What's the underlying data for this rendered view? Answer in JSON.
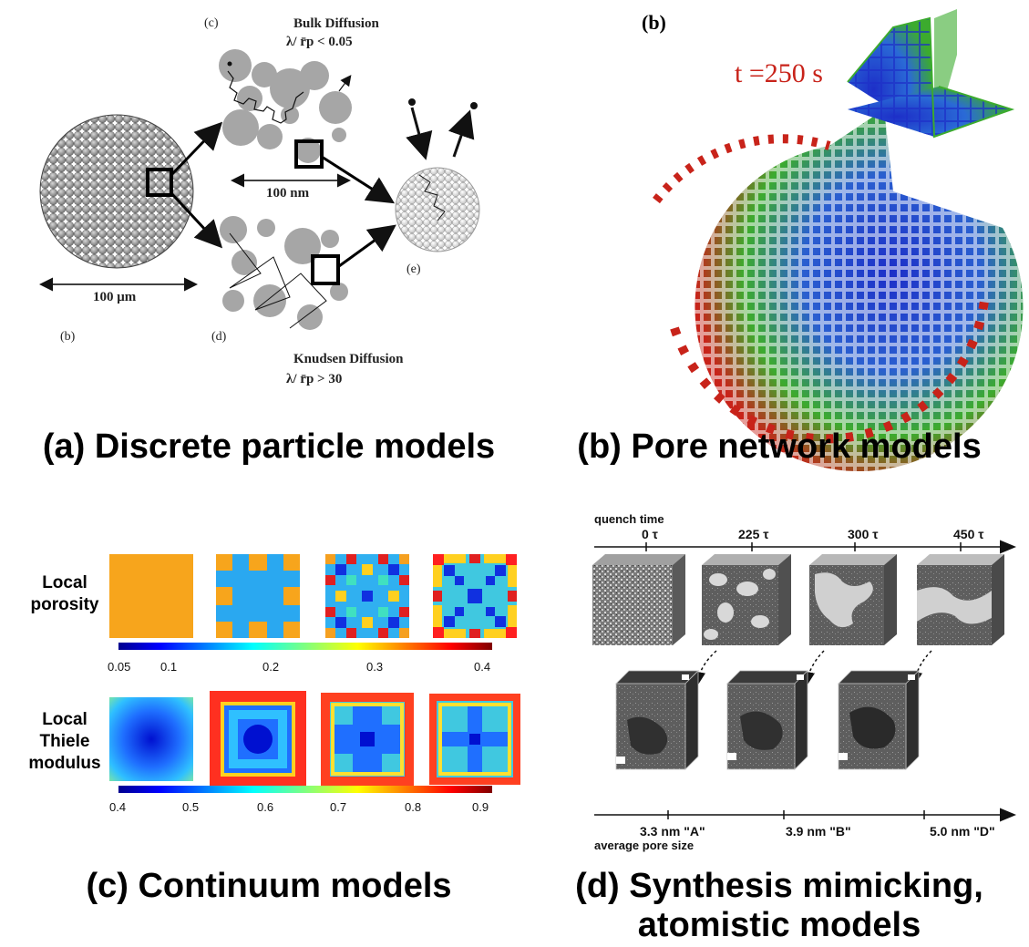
{
  "panel_a": {
    "caption": "(a) Discrete particle models",
    "label_c": "(c)",
    "label_b": "(b)",
    "label_d": "(d)",
    "label_e": "(e)",
    "bulk_title": "Bulk Diffusion",
    "bulk_cond": "λ/ r̄p < 0.05",
    "knudsen_title": "Knudsen Diffusion",
    "knudsen_cond": "λ/ r̄p > 30",
    "scale_nm": "100 nm",
    "scale_um": "100 μm"
  },
  "panel_b": {
    "caption": "(b) Pore network models",
    "label": "(b)",
    "time": "t =250 s"
  },
  "panel_c": {
    "caption": "(c) Continuum models",
    "row1_label_line1": "Local",
    "row1_label_line2": "porosity",
    "row2_label_line1": "Local",
    "row2_label_line2": "Thiele",
    "row2_label_line3": "modulus",
    "colorbar1_ticks": [
      "0.05",
      "0.1",
      "0.2",
      "0.3",
      "0.4"
    ],
    "colorbar2_ticks": [
      "0.4",
      "0.5",
      "0.6",
      "0.7",
      "0.8",
      "0.9"
    ]
  },
  "panel_d": {
    "caption_line1": "(d) Synthesis mimicking,",
    "caption_line2": "atomistic models",
    "quench_label": "quench time",
    "times": [
      "0 τ",
      "225 τ",
      "300 τ",
      "450 τ"
    ],
    "pore_sizes": [
      "3.3 nm \"A\"",
      "3.9 nm \"B\"",
      "5.0 nm \"D\""
    ],
    "pore_label": "average pore size"
  },
  "colors": {
    "porosity_orange": "#f7a51c",
    "porosity_blue": "#2aa8f0",
    "network_red": "#c8231a",
    "network_green": "#3cab2e",
    "network_blue": "#1d2fc8",
    "time_red": "#c8231a"
  }
}
